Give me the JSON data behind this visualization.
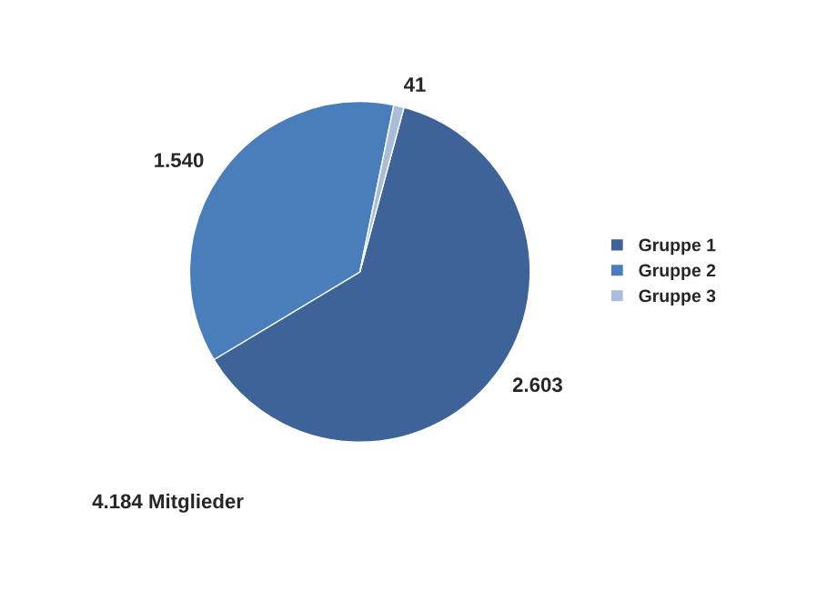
{
  "chart_data": {
    "type": "pie",
    "categories": [
      "Gruppe 1",
      "Gruppe 2",
      "Gruppe 3"
    ],
    "values": [
      2603,
      1540,
      41
    ],
    "value_labels": [
      "2.603",
      "1.540",
      "41"
    ],
    "colors": [
      "#3d6398",
      "#4a7ebb",
      "#a9bcd9"
    ],
    "legend": "right",
    "annotations": [
      "4.184 Mitglieder"
    ]
  }
}
